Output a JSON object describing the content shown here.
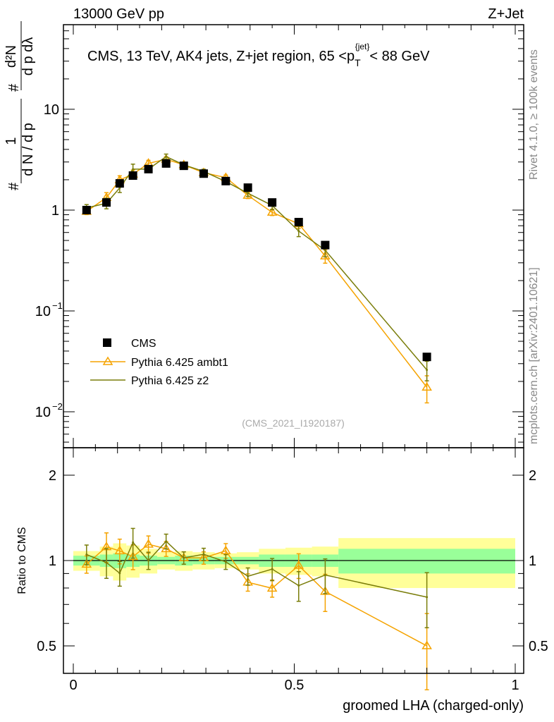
{
  "header": {
    "left": "13000 GeV pp",
    "right": "Z+Jet"
  },
  "side_labels": {
    "rivet": "Rivet 4.1.0, ≥ 100k events",
    "mcplots": "mcplots.cern.ch [arXiv:2401.10621]"
  },
  "colors": {
    "cms": "#000000",
    "ambt1": "#f5a300",
    "z2": "#7a7d0a",
    "band_outer": "#ffff99",
    "band_inner": "#99ff99"
  },
  "chart_data": [
    {
      "type": "line",
      "panel": "main",
      "title": "CMS, 13 TeV, AK4 jets, Z+jet region, 65 <p",
      "title_sub": "T",
      "title_sup": "{jet}",
      "title_tail": "< 88 GeV",
      "analysis_id": "(CMS_2021_I1920187)",
      "ylabel_num1": "1",
      "ylabel_den1": "d N / d p",
      "ylabel_num2": "d²N",
      "ylabel_den2": "d p  dλ",
      "ylabel_hash": "#",
      "yscale": "log",
      "ylim": [
        0.0044,
        69
      ],
      "xlim": [
        0,
        1
      ],
      "ytick_labels": [
        {
          "v": 0.01,
          "t": "10",
          "e": "−2"
        },
        {
          "v": 0.1,
          "t": "10",
          "e": "−1"
        },
        {
          "v": 1,
          "t": "1",
          "e": ""
        },
        {
          "v": 10,
          "t": "10",
          "e": ""
        }
      ],
      "bin_edges": [
        0,
        0.06,
        0.09,
        0.12,
        0.15,
        0.19,
        0.23,
        0.27,
        0.32,
        0.37,
        0.42,
        0.48,
        0.54,
        0.6,
        1.0
      ],
      "x": [
        0.03,
        0.075,
        0.105,
        0.135,
        0.17,
        0.21,
        0.25,
        0.295,
        0.345,
        0.395,
        0.45,
        0.51,
        0.57,
        0.8
      ],
      "series": [
        {
          "name": "CMS",
          "key": "cms",
          "values": [
            1.0,
            1.19,
            1.84,
            2.2,
            2.55,
            2.9,
            2.75,
            2.3,
            1.94,
            1.67,
            1.19,
            0.76,
            0.45,
            0.035
          ]
        },
        {
          "name": "Pythia 6.425 ambt1",
          "key": "ambt1",
          "values": [
            0.97,
            1.33,
            1.99,
            2.27,
            2.91,
            3.19,
            2.81,
            2.35,
            2.1,
            1.4,
            0.95,
            0.73,
            0.35,
            0.0175
          ],
          "rel_err": [
            0.07,
            0.12,
            0.1,
            0.1,
            0.07,
            0.06,
            0.05,
            0.05,
            0.06,
            0.07,
            0.07,
            0.1,
            0.15,
            0.3
          ]
        },
        {
          "name": "Pythia 6.425 z2",
          "key": "z2",
          "values": [
            1.05,
            1.17,
            1.66,
            2.55,
            2.55,
            3.39,
            2.81,
            2.42,
            1.92,
            1.47,
            1.11,
            0.62,
            0.4,
            0.026
          ],
          "rel_err": [
            0.08,
            0.12,
            0.1,
            0.12,
            0.07,
            0.06,
            0.05,
            0.05,
            0.06,
            0.07,
            0.09,
            0.12,
            0.14,
            0.22
          ]
        }
      ],
      "legend": "middle-left"
    },
    {
      "type": "line",
      "panel": "ratio",
      "ylabel": "Ratio to CMS",
      "xlabel": "groomed LHA (charged-only)",
      "yscale": "log",
      "ylim": [
        0.4,
        2.5
      ],
      "ytick_labels": [
        {
          "v": 0.5,
          "t": "0.5"
        },
        {
          "v": 1,
          "t": "1"
        },
        {
          "v": 2,
          "t": "2"
        }
      ],
      "xtick_labels": [
        {
          "v": 0,
          "t": "0"
        },
        {
          "v": 0.5,
          "t": "0.5"
        },
        {
          "v": 1,
          "t": "1"
        }
      ],
      "cms_band_outer": [
        0.08,
        0.12,
        0.15,
        0.13,
        0.1,
        0.07,
        0.08,
        0.07,
        0.06,
        0.07,
        0.1,
        0.11,
        0.12,
        0.2
      ],
      "cms_band_inner": [
        0.04,
        0.05,
        0.06,
        0.05,
        0.04,
        0.03,
        0.04,
        0.03,
        0.03,
        0.03,
        0.05,
        0.05,
        0.05,
        0.1
      ]
    }
  ]
}
